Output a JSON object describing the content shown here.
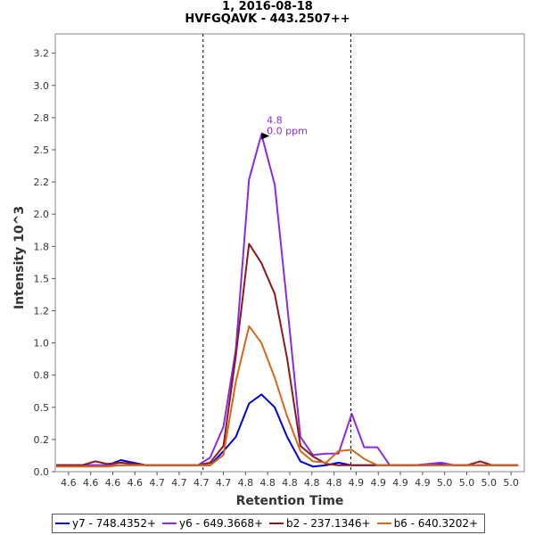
{
  "header": {
    "line1": "1, 2016-08-18",
    "line2": "HVFGQAVK - 443.2507++"
  },
  "chart_data": {
    "type": "line",
    "title": "1, 2016-08-18",
    "subtitle": "HVFGQAVK - 443.2507++",
    "xlabel": "Retention Time",
    "ylabel": "Intensity 10^3",
    "xlim": [
      4.555,
      5.085
    ],
    "ylim": [
      0,
      3.4
    ],
    "x_tick_values": [
      4.57,
      4.595,
      4.62,
      4.645,
      4.67,
      4.695,
      4.72,
      4.745,
      4.77,
      4.795,
      4.82,
      4.845,
      4.87,
      4.895,
      4.92,
      4.945,
      4.97,
      4.995,
      5.02,
      5.045,
      5.07
    ],
    "x_tick_labels": [
      "4.6",
      "4.6",
      "4.6",
      "4.6",
      "4.7",
      "4.7",
      "4.7",
      "4.7",
      "4.8",
      "4.8",
      "4.8",
      "4.8",
      "4.8",
      "4.9",
      "4.9",
      "4.9",
      "4.9",
      "5.0",
      "5.0",
      "5.0",
      "5.0"
    ],
    "y_ticks": [
      {
        "value": 0.0,
        "label": "0.0"
      },
      {
        "value": 0.25,
        "label": "0.2"
      },
      {
        "value": 0.5,
        "label": "0.5"
      },
      {
        "value": 0.75,
        "label": "0.8"
      },
      {
        "value": 1.0,
        "label": "1.0"
      },
      {
        "value": 1.25,
        "label": "1.2"
      },
      {
        "value": 1.5,
        "label": "1.5"
      },
      {
        "value": 1.75,
        "label": "1.8"
      },
      {
        "value": 2.0,
        "label": "2.0"
      },
      {
        "value": 2.25,
        "label": "2.2"
      },
      {
        "value": 2.5,
        "label": "2.5"
      },
      {
        "value": 2.75,
        "label": "2.8"
      },
      {
        "value": 3.0,
        "label": "3.0"
      },
      {
        "value": 3.25,
        "label": "3.2"
      }
    ],
    "boundaries": [
      4.722,
      4.889
    ],
    "annotation": {
      "x": 4.8,
      "y": 2.6,
      "line1": "4.8",
      "line2": "0.0 ppm",
      "color": "#8a2be2"
    },
    "grid": false,
    "legend_position": "bottom",
    "x": [
      4.556,
      4.571,
      4.585,
      4.6,
      4.614,
      4.629,
      4.643,
      4.658,
      4.672,
      4.687,
      4.701,
      4.716,
      4.73,
      4.745,
      4.759,
      4.774,
      4.788,
      4.803,
      4.817,
      4.832,
      4.846,
      4.861,
      4.875,
      4.89,
      4.904,
      4.919,
      4.933,
      4.948,
      4.962,
      4.977,
      4.991,
      5.006,
      5.02,
      5.035,
      5.049,
      5.064,
      5.078
    ],
    "series": [
      {
        "name": "y7 - 748.4352+",
        "color": "#0000dd",
        "values": [
          0.05,
          0.05,
          0.05,
          0.05,
          0.05,
          0.09,
          0.07,
          0.05,
          0.05,
          0.05,
          0.05,
          0.05,
          0.05,
          0.16,
          0.27,
          0.53,
          0.6,
          0.5,
          0.27,
          0.08,
          0.04,
          0.05,
          0.07,
          0.05,
          0.05,
          0.05,
          0.05,
          0.05,
          0.05,
          0.05,
          0.06,
          0.05,
          0.05,
          0.05,
          0.05,
          0.05,
          0.05
        ]
      },
      {
        "name": "y6 - 649.3668+",
        "color": "#8a2be2",
        "values": [
          0.05,
          0.05,
          0.05,
          0.05,
          0.05,
          0.05,
          0.05,
          0.05,
          0.05,
          0.05,
          0.05,
          0.05,
          0.11,
          0.35,
          0.95,
          2.27,
          2.62,
          2.23,
          1.3,
          0.27,
          0.13,
          0.14,
          0.14,
          0.45,
          0.19,
          0.19,
          0.05,
          0.05,
          0.05,
          0.06,
          0.07,
          0.05,
          0.05,
          0.05,
          0.05,
          0.05,
          0.05
        ]
      },
      {
        "name": "b2 - 237.1346+",
        "color": "#8b1a1a",
        "values": [
          0.05,
          0.05,
          0.05,
          0.08,
          0.06,
          0.07,
          0.06,
          0.05,
          0.05,
          0.05,
          0.05,
          0.05,
          0.07,
          0.2,
          0.9,
          1.77,
          1.62,
          1.38,
          0.88,
          0.2,
          0.12,
          0.06,
          0.05,
          0.05,
          0.05,
          0.05,
          0.05,
          0.05,
          0.05,
          0.05,
          0.05,
          0.05,
          0.05,
          0.08,
          0.05,
          0.05,
          0.05
        ]
      },
      {
        "name": "b6 - 640.3202+",
        "color": "#d2691e",
        "values": [
          0.04,
          0.04,
          0.04,
          0.04,
          0.04,
          0.05,
          0.05,
          0.05,
          0.05,
          0.05,
          0.05,
          0.05,
          0.05,
          0.13,
          0.7,
          1.13,
          1.0,
          0.73,
          0.43,
          0.16,
          0.08,
          0.07,
          0.16,
          0.17,
          0.1,
          0.05,
          0.05,
          0.05,
          0.05,
          0.05,
          0.05,
          0.05,
          0.05,
          0.05,
          0.05,
          0.05,
          0.05
        ]
      }
    ]
  },
  "legend": {
    "items": [
      {
        "label": "y7 - 748.4352+",
        "color": "#0000dd"
      },
      {
        "label": "y6 - 649.3668+",
        "color": "#8a2be2"
      },
      {
        "label": "b2 - 237.1346+",
        "color": "#8b1a1a"
      },
      {
        "label": "b6 - 640.3202+",
        "color": "#d2691e"
      }
    ]
  }
}
